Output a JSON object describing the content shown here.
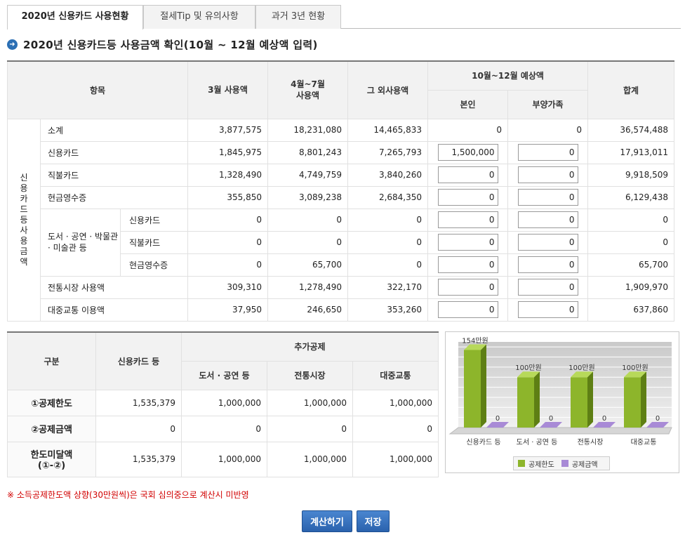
{
  "tabs": [
    {
      "label": "2020년 신용카드 사용현황",
      "active": true
    },
    {
      "label": "절세Tip 및 유의사항",
      "active": false
    },
    {
      "label": "과거 3년 현황",
      "active": false
    }
  ],
  "section_title": "2020년 신용카드등 사용금액 확인(10월 ~ 12월 예상액 입력)",
  "main_table": {
    "headers": {
      "item": "항목",
      "march": "3월 사용액",
      "apr_jul": "4월~7월 사용액",
      "others": "그 외사용액",
      "oct_dec": "10월~12월 예상액",
      "self": "본인",
      "dependents": "부양가족",
      "total": "합계"
    },
    "vertical_label": "신용카드등 사용금액",
    "group_label": "도서 · 공연 · 박물관 · 미술관 등",
    "rows": [
      {
        "label": "소계",
        "march": "3,877,575",
        "apr_jul": "18,231,080",
        "others": "14,465,833",
        "self": "0",
        "dependents": "0",
        "total": "36,574,488"
      },
      {
        "label": "신용카드",
        "march": "1,845,975",
        "apr_jul": "8,801,243",
        "others": "7,265,793",
        "self": "1,500,000",
        "dependents": "0",
        "total": "17,913,011"
      },
      {
        "label": "직불카드",
        "march": "1,328,490",
        "apr_jul": "4,749,759",
        "others": "3,840,260",
        "self": "0",
        "dependents": "0",
        "total": "9,918,509"
      },
      {
        "label": "현금영수증",
        "march": "355,850",
        "apr_jul": "3,089,238",
        "others": "2,684,350",
        "self": "0",
        "dependents": "0",
        "total": "6,129,438"
      },
      {
        "label": "신용카드",
        "march": "0",
        "apr_jul": "0",
        "others": "0",
        "self": "0",
        "dependents": "0",
        "total": "0"
      },
      {
        "label": "직불카드",
        "march": "0",
        "apr_jul": "0",
        "others": "0",
        "self": "0",
        "dependents": "0",
        "total": "0"
      },
      {
        "label": "현금영수증",
        "march": "0",
        "apr_jul": "65,700",
        "others": "0",
        "self": "0",
        "dependents": "0",
        "total": "65,700"
      },
      {
        "label": "전통시장 사용액",
        "march": "309,310",
        "apr_jul": "1,278,490",
        "others": "322,170",
        "self": "0",
        "dependents": "0",
        "total": "1,909,970"
      },
      {
        "label": "대중교통 이용액",
        "march": "37,950",
        "apr_jul": "246,650",
        "others": "353,260",
        "self": "0",
        "dependents": "0",
        "total": "637,860"
      }
    ]
  },
  "deduction_table": {
    "headers": {
      "category": "구분",
      "credit_card": "신용카드 등",
      "additional": "추가공제",
      "culture": "도서 · 공연 등",
      "market": "전통시장",
      "transit": "대중교통"
    },
    "rows": [
      {
        "label": "①공제한도",
        "credit_card": "1,535,379",
        "culture": "1,000,000",
        "market": "1,000,000",
        "transit": "1,000,000"
      },
      {
        "label": "②공제금액",
        "credit_card": "0",
        "culture": "0",
        "market": "0",
        "transit": "0"
      },
      {
        "label_line1": "한도미달액",
        "label_line2": "(①-②)",
        "credit_card": "1,535,379",
        "culture": "1,000,000",
        "market": "1,000,000",
        "transit": "1,000,000"
      }
    ]
  },
  "chart_data": {
    "type": "bar",
    "categories": [
      "신용카드 등",
      "도서 · 공연 등",
      "전통시장",
      "대중교통"
    ],
    "series": [
      {
        "name": "공제한도",
        "values": [
          154,
          100,
          100,
          100
        ],
        "labels": [
          "154만원",
          "100만원",
          "100만원",
          "100만원"
        ],
        "color": "#8db52b"
      },
      {
        "name": "공제금액",
        "values": [
          0,
          0,
          0,
          0
        ],
        "labels": [
          "0",
          "0",
          "0",
          "0"
        ],
        "color": "#a88ad6"
      }
    ],
    "ylim": [
      0,
      170
    ],
    "grid": true,
    "legend": "bottom"
  },
  "note": "※ 소득공제한도액 상향(30만원씩)은 국회 심의중으로 계산시 미반영",
  "buttons": {
    "calculate": "계산하기",
    "save": "저장"
  },
  "colors": {
    "accent": "#2b6fb4",
    "note": "#d10000",
    "bar_limit": "#8db52b",
    "bar_amount": "#a88ad6"
  }
}
